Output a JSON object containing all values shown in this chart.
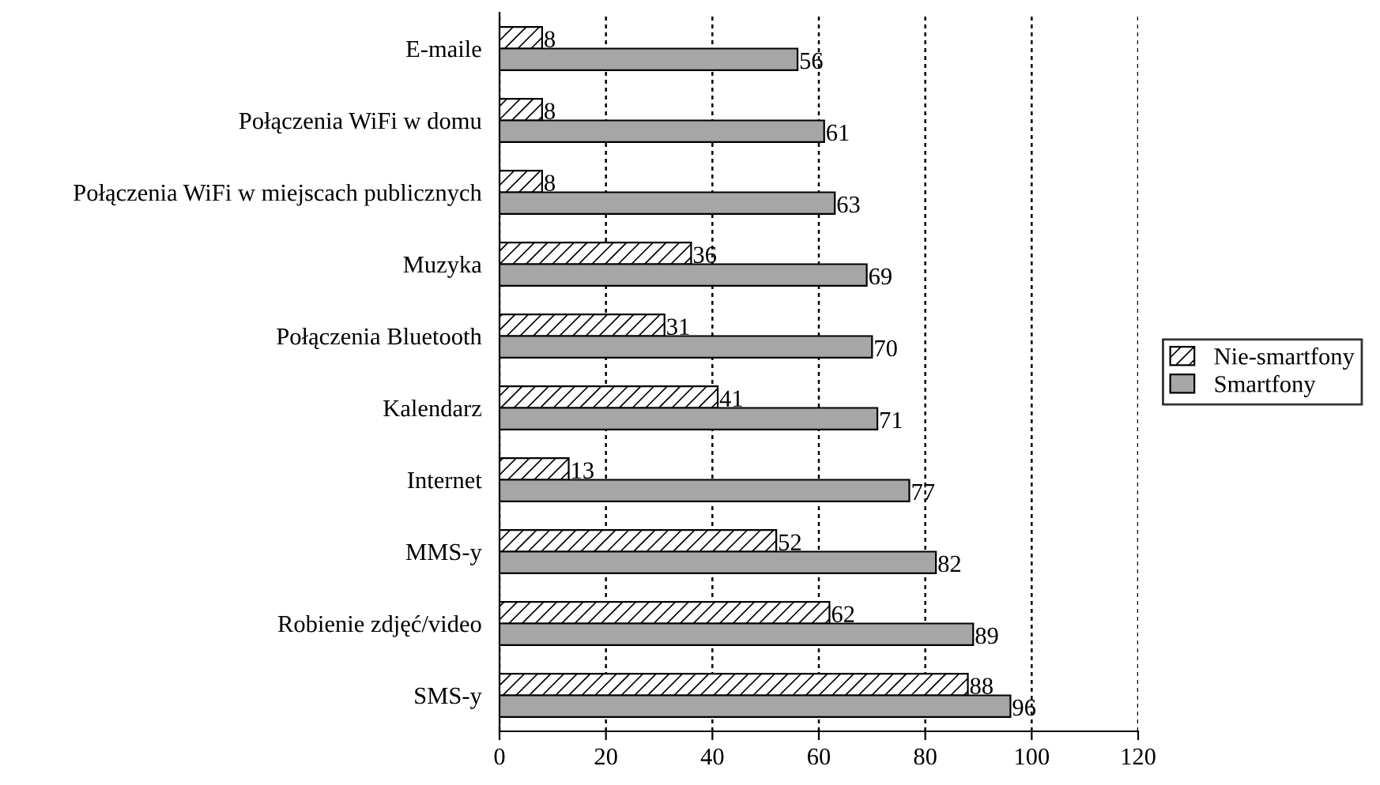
{
  "chart_data": {
    "type": "bar",
    "orientation": "horizontal",
    "categories": [
      "E-maile",
      "Połączenia WiFi w domu",
      "Połączenia WiFi w miejscach publicznych",
      "Muzyka",
      "Połączenia Bluetooth",
      "Kalendarz",
      "Internet",
      "MMS-y",
      "Robienie zdjęć/video",
      "SMS-y"
    ],
    "series": [
      {
        "name": "Nie-smartfony",
        "color": "#000000",
        "values": [
          8,
          8,
          8,
          36,
          31,
          41,
          13,
          52,
          62,
          88
        ]
      },
      {
        "name": "Smartfony",
        "color": "#a6a6a6",
        "values": [
          56,
          61,
          63,
          69,
          70,
          71,
          77,
          82,
          89,
          96
        ]
      }
    ],
    "xlim": [
      0,
      120
    ],
    "xticks": [
      0,
      20,
      40,
      60,
      80,
      100,
      120
    ],
    "grid": "x",
    "legend": "right",
    "data_labels": true
  }
}
